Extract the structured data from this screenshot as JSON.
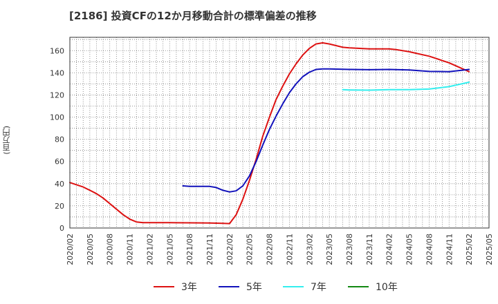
{
  "chart_data": {
    "type": "line",
    "title": "[2186]  投資CFの12か月移動合計の標準偏差の推移",
    "ylabel": "(百万円)",
    "xlabel": "",
    "ylim": [
      0,
      172
    ],
    "yticks": [
      0,
      20,
      40,
      60,
      80,
      100,
      120,
      140,
      160
    ],
    "xlim": [
      "2020/02",
      "2025/05"
    ],
    "xticks": [
      "2020/02",
      "2020/05",
      "2020/08",
      "2020/11",
      "2021/02",
      "2021/05",
      "2021/08",
      "2021/11",
      "2022/02",
      "2022/05",
      "2022/08",
      "2022/11",
      "2023/02",
      "2023/05",
      "2023/08",
      "2023/11",
      "2024/02",
      "2024/05",
      "2024/08",
      "2024/11",
      "2025/02",
      "2025/05"
    ],
    "grid": true,
    "legend_position": "bottom",
    "series": [
      {
        "name": "3年",
        "color": "#dd1111",
        "points": [
          [
            "2020/02",
            41
          ],
          [
            "2020/03",
            39
          ],
          [
            "2020/04",
            37
          ],
          [
            "2020/05",
            34
          ],
          [
            "2020/06",
            31
          ],
          [
            "2020/07",
            27
          ],
          [
            "2020/08",
            22
          ],
          [
            "2020/09",
            17
          ],
          [
            "2020/10",
            12
          ],
          [
            "2020/11",
            8
          ],
          [
            "2020/12",
            5.5
          ],
          [
            "2021/01",
            4.8
          ],
          [
            "2021/02",
            4.8
          ],
          [
            "2021/05",
            4.8
          ],
          [
            "2021/08",
            4.7
          ],
          [
            "2021/11",
            4.5
          ],
          [
            "2022/01",
            4.2
          ],
          [
            "2022/02",
            4
          ],
          [
            "2022/03",
            12
          ],
          [
            "2022/04",
            26
          ],
          [
            "2022/05",
            43
          ],
          [
            "2022/06",
            62
          ],
          [
            "2022/07",
            83
          ],
          [
            "2022/08",
            100
          ],
          [
            "2022/09",
            116
          ],
          [
            "2022/10",
            128
          ],
          [
            "2022/11",
            139
          ],
          [
            "2022/12",
            148
          ],
          [
            "2023/01",
            156
          ],
          [
            "2023/02",
            162
          ],
          [
            "2023/03",
            166
          ],
          [
            "2023/04",
            167
          ],
          [
            "2023/05",
            166
          ],
          [
            "2023/06",
            164.5
          ],
          [
            "2023/07",
            163
          ],
          [
            "2023/08",
            162.5
          ],
          [
            "2023/11",
            161.5
          ],
          [
            "2024/02",
            161.5
          ],
          [
            "2024/03",
            161
          ],
          [
            "2024/05",
            159
          ],
          [
            "2024/08",
            155
          ],
          [
            "2024/11",
            149
          ],
          [
            "2025/02",
            141
          ]
        ]
      },
      {
        "name": "5年",
        "color": "#1111bb",
        "points": [
          [
            "2021/07",
            38
          ],
          [
            "2021/08",
            37.5
          ],
          [
            "2021/11",
            37.5
          ],
          [
            "2021/12",
            36.5
          ],
          [
            "2022/01",
            34
          ],
          [
            "2022/02",
            32.5
          ],
          [
            "2022/03",
            33.5
          ],
          [
            "2022/04",
            38
          ],
          [
            "2022/05",
            47
          ],
          [
            "2022/06",
            60
          ],
          [
            "2022/07",
            75
          ],
          [
            "2022/08",
            89
          ],
          [
            "2022/09",
            101
          ],
          [
            "2022/10",
            112
          ],
          [
            "2022/11",
            122
          ],
          [
            "2022/12",
            130
          ],
          [
            "2023/01",
            136.5
          ],
          [
            "2023/02",
            140.5
          ],
          [
            "2023/03",
            143
          ],
          [
            "2023/04",
            143.5
          ],
          [
            "2023/05",
            143.5
          ],
          [
            "2023/08",
            143
          ],
          [
            "2023/11",
            142.8
          ],
          [
            "2024/02",
            143
          ],
          [
            "2024/05",
            142.5
          ],
          [
            "2024/08",
            141.2
          ],
          [
            "2024/11",
            141
          ],
          [
            "2025/02",
            143
          ]
        ]
      },
      {
        "name": "7年",
        "color": "#33eeee",
        "points": [
          [
            "2023/07",
            124.8
          ],
          [
            "2023/08",
            124.5
          ],
          [
            "2023/11",
            124.3
          ],
          [
            "2024/02",
            124.8
          ],
          [
            "2024/05",
            124.8
          ],
          [
            "2024/08",
            125.3
          ],
          [
            "2024/11",
            127.5
          ],
          [
            "2025/02",
            131.5
          ]
        ]
      },
      {
        "name": "10年",
        "color": "#118811",
        "points": []
      }
    ]
  }
}
